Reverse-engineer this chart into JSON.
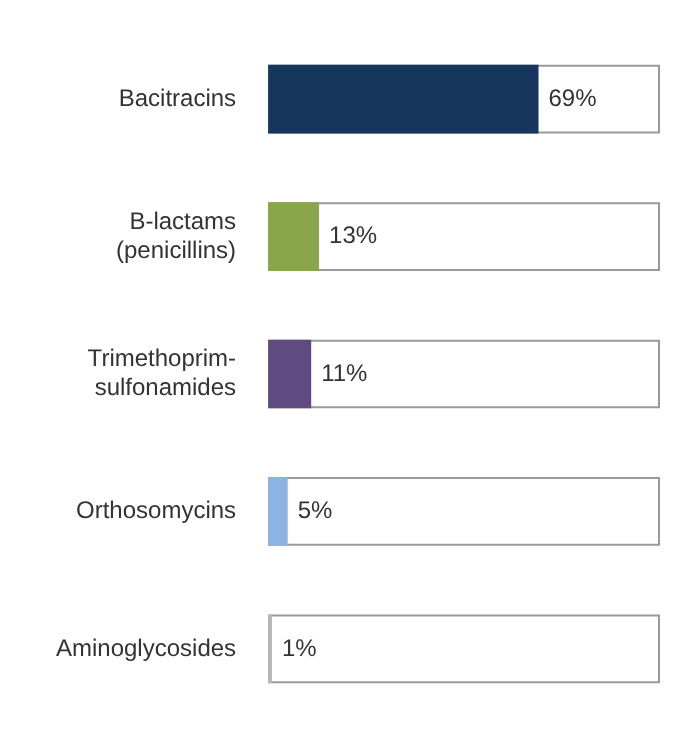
{
  "chart_data": {
    "type": "bar",
    "orientation": "horizontal",
    "categories": [
      "Bacitracins",
      "B-lactams (penicillins)",
      "Trimethoprim-sulfonamides",
      "Orthosomycins",
      "Aminoglycosides"
    ],
    "values": [
      69,
      13,
      11,
      5,
      1
    ],
    "colors": [
      "#17365d",
      "#8aa64b",
      "#5f4b82",
      "#8db3e2",
      "#b8b8b8"
    ],
    "value_labels": [
      "69%",
      "13%",
      "11%",
      "5%",
      "1%"
    ],
    "xlim": [
      0,
      100
    ],
    "tick_labels": "y"
  }
}
